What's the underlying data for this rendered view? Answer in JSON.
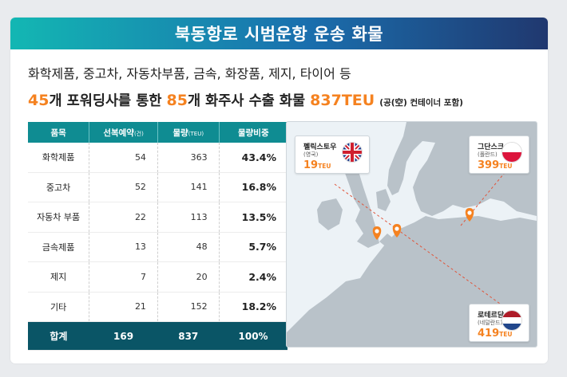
{
  "title": "북동항로 시범운항 운송 화물",
  "subtitle": "화학제품, 중고차, 자동차부품, 금속, 화장품, 제지, 타이어 등",
  "headline": {
    "n_forwarders": "45",
    "part1": "개 포워딩사를 통한 ",
    "n_shippers": "85",
    "part2": "개 화주사 수출 화물 ",
    "teu": "837TEU",
    "note": "(공(空) 컨테이너 포함)"
  },
  "chart_data": {
    "type": "table",
    "columns": [
      "품목",
      "선복예약(건)",
      "물량(TEU)",
      "물량비중"
    ],
    "rows": [
      [
        "화학제품",
        "54",
        "363",
        "43.4%"
      ],
      [
        "중고차",
        "52",
        "141",
        "16.8%"
      ],
      [
        "자동차 부품",
        "22",
        "113",
        "13.5%"
      ],
      [
        "금속제품",
        "13",
        "48",
        "5.7%"
      ],
      [
        "제지",
        "7",
        "20",
        "2.4%"
      ],
      [
        "기타",
        "21",
        "152",
        "18.2%"
      ]
    ],
    "total": [
      "합계",
      "169",
      "837",
      "100%"
    ]
  },
  "table_header": {
    "c0": "품목",
    "c1": "선복예약",
    "c1_unit": "(건)",
    "c2": "물량",
    "c2_unit": "(TEU)",
    "c3": "물량비중"
  },
  "map": {
    "ports": [
      {
        "name": "펠릭스토우",
        "country": "(영국)",
        "value": "19",
        "unit": "TEU",
        "flag": "uk"
      },
      {
        "name": "그단스크",
        "country": "(폴란드)",
        "value": "399",
        "unit": "TEU",
        "flag": "poland"
      },
      {
        "name": "로테르담",
        "country": "(네덜란드)",
        "value": "419",
        "unit": "TEU",
        "flag": "netherlands"
      }
    ]
  },
  "colors": {
    "accent_orange": "#f58220",
    "table_header": "#0f8c92",
    "table_total": "#0a5566",
    "land": "#b9c2c9",
    "sea": "#ecf2f6"
  }
}
